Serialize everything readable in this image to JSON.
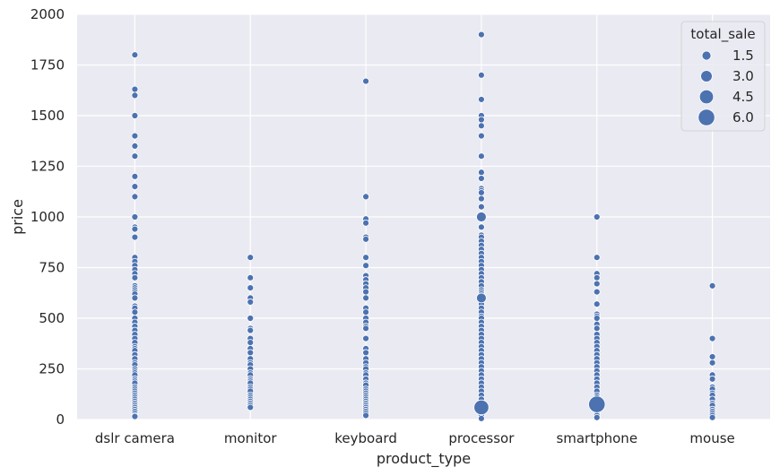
{
  "chart_data": {
    "type": "scatter",
    "xlabel": "product_type",
    "ylabel": "price",
    "categories": [
      "dslr camera",
      "monitor",
      "keyboard",
      "processor",
      "smartphone",
      "mouse"
    ],
    "ylim": [
      0,
      2000
    ],
    "yticks": [
      0,
      250,
      500,
      750,
      1000,
      1250,
      1500,
      1750,
      2000
    ],
    "grid": true,
    "colors": {
      "point": "#4c72b0",
      "point_edge": "#ffffff",
      "plot_bg": "#eaeaf2",
      "grid": "#ffffff"
    },
    "legend": {
      "title": "total_sale",
      "placement": "top-right",
      "entries": [
        {
          "label": "1.5",
          "size": 1.5
        },
        {
          "label": "3.0",
          "size": 3.0
        },
        {
          "label": "4.5",
          "size": 4.5
        },
        {
          "label": "6.0",
          "size": 6.0
        }
      ]
    },
    "series": [
      {
        "category": "dslr camera",
        "points": [
          [
            1800,
            1
          ],
          [
            1630,
            1
          ],
          [
            1600,
            1
          ],
          [
            1500,
            1
          ],
          [
            1400,
            1
          ],
          [
            1350,
            1
          ],
          [
            1300,
            1
          ],
          [
            1200,
            1
          ],
          [
            1150,
            1
          ],
          [
            1100,
            1
          ],
          [
            1000,
            1
          ],
          [
            950,
            1
          ],
          [
            940,
            1
          ],
          [
            900,
            1
          ],
          [
            800,
            1
          ],
          [
            780,
            1
          ],
          [
            760,
            1
          ],
          [
            740,
            1
          ],
          [
            720,
            1
          ],
          [
            700,
            1
          ],
          [
            660,
            1
          ],
          [
            650,
            1
          ],
          [
            640,
            1
          ],
          [
            630,
            1
          ],
          [
            620,
            1
          ],
          [
            600,
            1
          ],
          [
            560,
            1
          ],
          [
            550,
            1
          ],
          [
            530,
            1
          ],
          [
            500,
            1
          ],
          [
            480,
            1
          ],
          [
            460,
            1
          ],
          [
            440,
            1
          ],
          [
            420,
            1
          ],
          [
            400,
            1
          ],
          [
            380,
            1
          ],
          [
            360,
            1
          ],
          [
            350,
            1
          ],
          [
            340,
            1
          ],
          [
            320,
            1
          ],
          [
            300,
            1
          ],
          [
            280,
            1
          ],
          [
            270,
            1
          ],
          [
            250,
            1
          ],
          [
            240,
            1
          ],
          [
            230,
            1
          ],
          [
            220,
            1
          ],
          [
            200,
            1
          ],
          [
            190,
            1
          ],
          [
            180,
            1
          ],
          [
            160,
            1
          ],
          [
            150,
            1
          ],
          [
            140,
            1
          ],
          [
            130,
            1
          ],
          [
            120,
            1
          ],
          [
            110,
            1
          ],
          [
            100,
            1
          ],
          [
            90,
            1
          ],
          [
            80,
            1
          ],
          [
            70,
            1
          ],
          [
            60,
            1
          ],
          [
            50,
            1
          ],
          [
            40,
            1
          ],
          [
            30,
            1
          ],
          [
            20,
            1
          ],
          [
            15,
            1
          ]
        ]
      },
      {
        "category": "monitor",
        "points": [
          [
            800,
            1
          ],
          [
            700,
            1
          ],
          [
            650,
            1
          ],
          [
            600,
            1
          ],
          [
            580,
            1
          ],
          [
            500,
            1
          ],
          [
            450,
            1
          ],
          [
            440,
            1
          ],
          [
            400,
            1
          ],
          [
            380,
            1
          ],
          [
            350,
            1
          ],
          [
            330,
            1
          ],
          [
            300,
            1
          ],
          [
            280,
            1
          ],
          [
            270,
            1
          ],
          [
            250,
            1
          ],
          [
            230,
            1
          ],
          [
            220,
            1
          ],
          [
            200,
            1
          ],
          [
            190,
            1
          ],
          [
            180,
            1
          ],
          [
            160,
            1
          ],
          [
            150,
            1
          ],
          [
            140,
            1
          ],
          [
            120,
            1
          ],
          [
            110,
            1
          ],
          [
            100,
            1
          ],
          [
            90,
            1
          ],
          [
            80,
            1
          ],
          [
            70,
            1
          ],
          [
            60,
            1
          ]
        ]
      },
      {
        "category": "keyboard",
        "points": [
          [
            1670,
            1
          ],
          [
            1100,
            1
          ],
          [
            990,
            1
          ],
          [
            970,
            1
          ],
          [
            900,
            1
          ],
          [
            890,
            1
          ],
          [
            800,
            1
          ],
          [
            760,
            1
          ],
          [
            710,
            1
          ],
          [
            690,
            1
          ],
          [
            670,
            1
          ],
          [
            650,
            1
          ],
          [
            630,
            1
          ],
          [
            600,
            1
          ],
          [
            550,
            1
          ],
          [
            530,
            1
          ],
          [
            500,
            1
          ],
          [
            480,
            1
          ],
          [
            460,
            1
          ],
          [
            450,
            1
          ],
          [
            400,
            1
          ],
          [
            350,
            1
          ],
          [
            330,
            1
          ],
          [
            300,
            1
          ],
          [
            280,
            1
          ],
          [
            260,
            1
          ],
          [
            250,
            1
          ],
          [
            230,
            1
          ],
          [
            220,
            1
          ],
          [
            200,
            1
          ],
          [
            180,
            1
          ],
          [
            170,
            1
          ],
          [
            150,
            1
          ],
          [
            140,
            1
          ],
          [
            130,
            1
          ],
          [
            120,
            1
          ],
          [
            110,
            1
          ],
          [
            100,
            1
          ],
          [
            90,
            1
          ],
          [
            80,
            1
          ],
          [
            70,
            1
          ],
          [
            60,
            1
          ],
          [
            50,
            1
          ],
          [
            40,
            1
          ],
          [
            30,
            1
          ],
          [
            20,
            1
          ]
        ]
      },
      {
        "category": "processor",
        "points": [
          [
            1900,
            1
          ],
          [
            1700,
            1
          ],
          [
            1580,
            1
          ],
          [
            1500,
            1
          ],
          [
            1480,
            1
          ],
          [
            1450,
            1
          ],
          [
            1400,
            1
          ],
          [
            1300,
            1
          ],
          [
            1220,
            1
          ],
          [
            1190,
            1
          ],
          [
            1140,
            1
          ],
          [
            1130,
            1
          ],
          [
            1120,
            1
          ],
          [
            1090,
            1
          ],
          [
            1050,
            1
          ],
          [
            1000,
            2
          ],
          [
            990,
            1
          ],
          [
            950,
            1
          ],
          [
            910,
            1
          ],
          [
            900,
            1
          ],
          [
            880,
            1
          ],
          [
            860,
            1
          ],
          [
            840,
            1
          ],
          [
            820,
            1
          ],
          [
            800,
            1
          ],
          [
            780,
            1
          ],
          [
            760,
            1
          ],
          [
            740,
            1
          ],
          [
            720,
            1
          ],
          [
            700,
            1
          ],
          [
            680,
            1
          ],
          [
            660,
            1
          ],
          [
            640,
            1
          ],
          [
            630,
            1
          ],
          [
            620,
            1
          ],
          [
            610,
            1
          ],
          [
            600,
            2
          ],
          [
            590,
            1
          ],
          [
            570,
            1
          ],
          [
            550,
            1
          ],
          [
            530,
            1
          ],
          [
            510,
            1
          ],
          [
            500,
            1
          ],
          [
            480,
            1
          ],
          [
            460,
            1
          ],
          [
            440,
            1
          ],
          [
            420,
            1
          ],
          [
            400,
            1
          ],
          [
            380,
            1
          ],
          [
            360,
            1
          ],
          [
            340,
            1
          ],
          [
            320,
            1
          ],
          [
            300,
            1
          ],
          [
            280,
            1
          ],
          [
            260,
            1
          ],
          [
            240,
            1
          ],
          [
            220,
            1
          ],
          [
            200,
            1
          ],
          [
            180,
            1
          ],
          [
            160,
            1
          ],
          [
            140,
            1
          ],
          [
            120,
            1
          ],
          [
            100,
            1
          ],
          [
            80,
            1
          ],
          [
            60,
            5
          ],
          [
            40,
            1
          ],
          [
            20,
            1
          ],
          [
            5,
            1
          ]
        ]
      },
      {
        "category": "smartphone",
        "points": [
          [
            1000,
            1
          ],
          [
            800,
            1
          ],
          [
            720,
            1
          ],
          [
            700,
            1
          ],
          [
            670,
            1
          ],
          [
            630,
            1
          ],
          [
            570,
            1
          ],
          [
            520,
            1
          ],
          [
            510,
            1
          ],
          [
            500,
            1
          ],
          [
            470,
            1
          ],
          [
            450,
            1
          ],
          [
            420,
            1
          ],
          [
            400,
            1
          ],
          [
            380,
            1
          ],
          [
            360,
            1
          ],
          [
            340,
            1
          ],
          [
            320,
            1
          ],
          [
            300,
            1
          ],
          [
            280,
            1
          ],
          [
            260,
            1
          ],
          [
            240,
            1
          ],
          [
            220,
            1
          ],
          [
            200,
            1
          ],
          [
            180,
            1
          ],
          [
            160,
            1
          ],
          [
            140,
            1
          ],
          [
            120,
            1
          ],
          [
            110,
            1
          ],
          [
            100,
            1
          ],
          [
            90,
            1
          ],
          [
            80,
            1
          ],
          [
            75,
            6
          ],
          [
            60,
            1
          ],
          [
            50,
            1
          ],
          [
            40,
            1
          ],
          [
            30,
            1
          ],
          [
            20,
            1
          ],
          [
            10,
            1
          ]
        ]
      },
      {
        "category": "mouse",
        "points": [
          [
            660,
            1
          ],
          [
            400,
            1
          ],
          [
            310,
            1
          ],
          [
            280,
            1
          ],
          [
            220,
            1
          ],
          [
            200,
            1
          ],
          [
            160,
            1
          ],
          [
            150,
            1
          ],
          [
            130,
            1
          ],
          [
            120,
            1
          ],
          [
            100,
            1
          ],
          [
            80,
            1
          ],
          [
            70,
            1
          ],
          [
            50,
            1
          ],
          [
            40,
            1
          ],
          [
            30,
            1
          ],
          [
            20,
            1
          ],
          [
            10,
            1
          ]
        ]
      }
    ]
  }
}
